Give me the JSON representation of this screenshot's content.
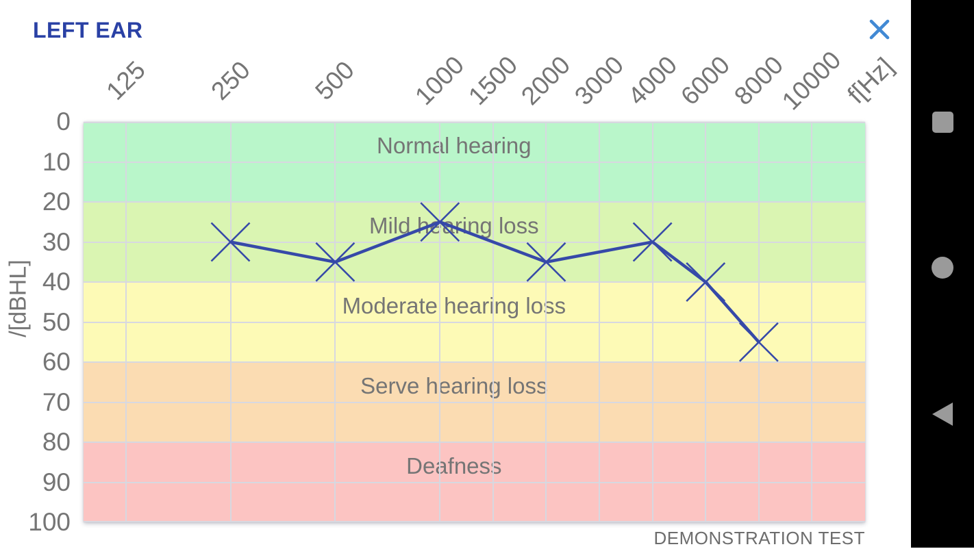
{
  "header": {
    "title": "LEFT EAR",
    "title_color": "#2a41a5",
    "close_icon_color": "#4189d4"
  },
  "chart_data": {
    "type": "line",
    "title": "LEFT EAR",
    "xlabel": "f[Hz]",
    "ylabel": "/[dBHL]",
    "footer": "DEMONSTRATION TEST",
    "grid": true,
    "y_inverted": true,
    "ylim": [
      0,
      100
    ],
    "y_ticks": [
      0,
      10,
      20,
      30,
      40,
      50,
      60,
      70,
      80,
      90,
      100
    ],
    "x_ticks": [
      {
        "label": "125",
        "pos": 0.054
      },
      {
        "label": "250",
        "pos": 0.188
      },
      {
        "label": "500",
        "pos": 0.322
      },
      {
        "label": "1000",
        "pos": 0.456
      },
      {
        "label": "1500",
        "pos": 0.524
      },
      {
        "label": "2000",
        "pos": 0.592
      },
      {
        "label": "3000",
        "pos": 0.66
      },
      {
        "label": "4000",
        "pos": 0.728
      },
      {
        "label": "6000",
        "pos": 0.796
      },
      {
        "label": "8000",
        "pos": 0.864
      },
      {
        "label": "10000",
        "pos": 0.932
      }
    ],
    "x_axis_unit_pos": 1.007,
    "bands": [
      {
        "label": "Normal hearing",
        "from": 0,
        "to": 20,
        "color": "#b9f6ca"
      },
      {
        "label": "Mild hearing loss",
        "from": 20,
        "to": 40,
        "color": "#daf5b2"
      },
      {
        "label": "Moderate hearing loss",
        "from": 40,
        "to": 60,
        "color": "#fdfab6"
      },
      {
        "label": "Serve hearing loss",
        "from": 60,
        "to": 80,
        "color": "#fbdcb2"
      },
      {
        "label": "Deafness",
        "from": 80,
        "to": 100,
        "color": "#fcc4c2"
      }
    ],
    "series": [
      {
        "name": "left-ear-threshold",
        "marker": "x",
        "color": "#3649a8",
        "points": [
          {
            "freq": "250",
            "db": 30
          },
          {
            "freq": "500",
            "db": 35
          },
          {
            "freq": "1000",
            "db": 25
          },
          {
            "freq": "2000",
            "db": 35
          },
          {
            "freq": "4000",
            "db": 30
          },
          {
            "freq": "6000",
            "db": 40
          },
          {
            "freq": "8000",
            "db": 55
          }
        ]
      }
    ],
    "colors": {
      "grid": "#d7d8e0",
      "tick_text": "#757575",
      "band_text": "#757575",
      "footer_text": "#6d6d6d"
    }
  },
  "nav_bar": {
    "background": "#000000",
    "icon_color": "#9a9a9a",
    "icons": [
      {
        "name": "recents",
        "shape": "square"
      },
      {
        "name": "home",
        "shape": "circle"
      },
      {
        "name": "back",
        "shape": "triangle"
      }
    ]
  }
}
